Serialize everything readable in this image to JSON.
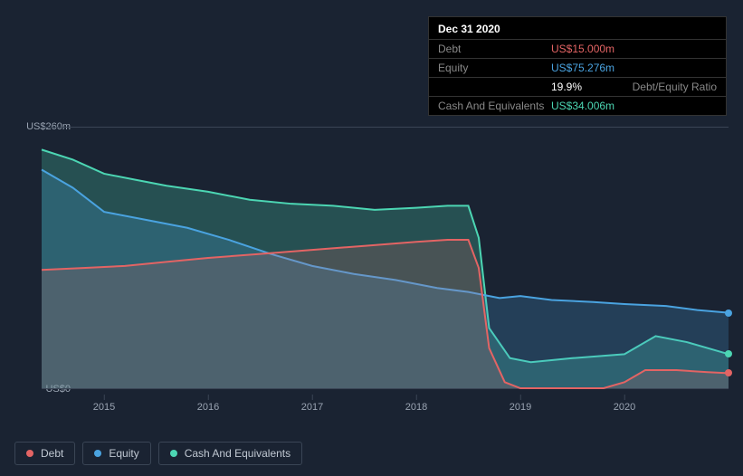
{
  "tooltip": {
    "date": "Dec 31 2020",
    "rows": [
      {
        "label": "Debt",
        "value": "US$15.000m",
        "color": "#e36464"
      },
      {
        "label": "Equity",
        "value": "US$75.276m",
        "color": "#4aa3e0"
      },
      {
        "label": "",
        "value": "19.9%",
        "extra": "Debt/Equity Ratio",
        "value_color": "#ffffff"
      },
      {
        "label": "Cash And Equivalents",
        "value": "US$34.006m",
        "color": "#4cd6b3"
      }
    ]
  },
  "chart": {
    "type": "area",
    "background": "#1a2332",
    "grid_color": "#3a4555",
    "ylim": [
      0,
      260
    ],
    "ylabels": [
      {
        "v": 260,
        "text": "US$260m"
      },
      {
        "v": 0,
        "text": "US$0"
      }
    ],
    "x_domain": [
      2014.4,
      2021.0
    ],
    "x_ticks": [
      2015,
      2016,
      2017,
      2018,
      2019,
      2020
    ],
    "label_fontsize": 11,
    "series": [
      {
        "name": "Cash And Equivalents",
        "color": "#4cd6b3",
        "fill_opacity": 0.25,
        "stroke_width": 2,
        "points": [
          [
            2014.4,
            238
          ],
          [
            2014.7,
            228
          ],
          [
            2015.0,
            214
          ],
          [
            2015.3,
            208
          ],
          [
            2015.6,
            202
          ],
          [
            2016.0,
            196
          ],
          [
            2016.4,
            188
          ],
          [
            2016.8,
            184
          ],
          [
            2017.2,
            182
          ],
          [
            2017.6,
            178
          ],
          [
            2018.0,
            180
          ],
          [
            2018.3,
            182
          ],
          [
            2018.5,
            182
          ],
          [
            2018.6,
            150
          ],
          [
            2018.7,
            60
          ],
          [
            2018.9,
            30
          ],
          [
            2019.1,
            26
          ],
          [
            2019.5,
            30
          ],
          [
            2020.0,
            34
          ],
          [
            2020.3,
            52
          ],
          [
            2020.6,
            46
          ],
          [
            2021.0,
            34
          ]
        ]
      },
      {
        "name": "Equity",
        "color": "#4aa3e0",
        "fill_opacity": 0.22,
        "stroke_width": 2,
        "points": [
          [
            2014.4,
            218
          ],
          [
            2014.7,
            200
          ],
          [
            2015.0,
            176
          ],
          [
            2015.4,
            168
          ],
          [
            2015.8,
            160
          ],
          [
            2016.2,
            148
          ],
          [
            2016.6,
            134
          ],
          [
            2017.0,
            122
          ],
          [
            2017.4,
            114
          ],
          [
            2017.8,
            108
          ],
          [
            2018.2,
            100
          ],
          [
            2018.5,
            96
          ],
          [
            2018.6,
            94
          ],
          [
            2018.8,
            90
          ],
          [
            2019.0,
            92
          ],
          [
            2019.3,
            88
          ],
          [
            2019.7,
            86
          ],
          [
            2020.0,
            84
          ],
          [
            2020.4,
            82
          ],
          [
            2020.7,
            78
          ],
          [
            2021.0,
            75.276
          ]
        ]
      },
      {
        "name": "Debt",
        "color": "#e36464",
        "fill_opacity": 0.18,
        "stroke_width": 2,
        "points": [
          [
            2014.4,
            118
          ],
          [
            2014.8,
            120
          ],
          [
            2015.2,
            122
          ],
          [
            2015.6,
            126
          ],
          [
            2016.0,
            130
          ],
          [
            2016.5,
            134
          ],
          [
            2017.0,
            138
          ],
          [
            2017.5,
            142
          ],
          [
            2018.0,
            146
          ],
          [
            2018.3,
            148
          ],
          [
            2018.5,
            148
          ],
          [
            2018.6,
            120
          ],
          [
            2018.7,
            40
          ],
          [
            2018.85,
            6
          ],
          [
            2019.0,
            0
          ],
          [
            2019.4,
            0
          ],
          [
            2019.8,
            0
          ],
          [
            2020.0,
            6
          ],
          [
            2020.2,
            18
          ],
          [
            2020.5,
            18
          ],
          [
            2020.8,
            16
          ],
          [
            2021.0,
            15
          ]
        ]
      }
    ],
    "legend": [
      {
        "label": "Debt",
        "color": "#e36464"
      },
      {
        "label": "Equity",
        "color": "#4aa3e0"
      },
      {
        "label": "Cash And Equivalents",
        "color": "#4cd6b3"
      }
    ]
  }
}
